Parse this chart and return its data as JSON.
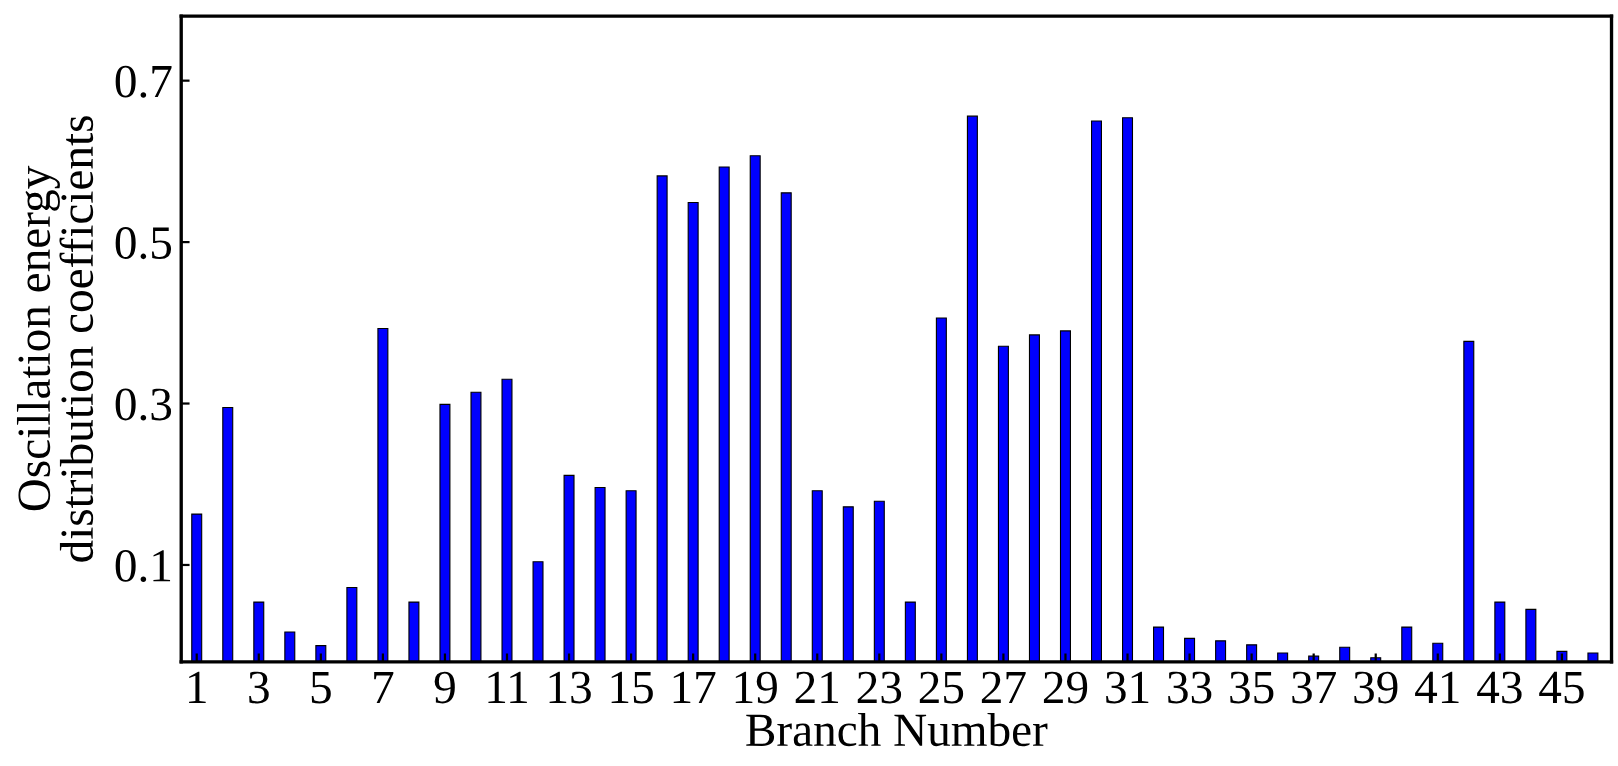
{
  "chart_data": {
    "type": "bar",
    "xlabel": "Branch Number",
    "ylabel": "Oscillation energy\ndistribution coefficients",
    "x": [
      1,
      2,
      3,
      4,
      5,
      6,
      7,
      8,
      9,
      10,
      11,
      12,
      13,
      14,
      15,
      16,
      17,
      18,
      19,
      20,
      21,
      22,
      23,
      24,
      25,
      26,
      27,
      28,
      29,
      30,
      31,
      32,
      33,
      34,
      35,
      36,
      37,
      38,
      39,
      40,
      41,
      42,
      43,
      44,
      45,
      46
    ],
    "values": [
      0.183,
      0.315,
      0.074,
      0.037,
      0.02,
      0.092,
      0.413,
      0.074,
      0.319,
      0.334,
      0.35,
      0.124,
      0.231,
      0.216,
      0.212,
      0.602,
      0.569,
      0.613,
      0.627,
      0.581,
      0.212,
      0.192,
      0.199,
      0.074,
      0.426,
      0.676,
      0.391,
      0.405,
      0.41,
      0.67,
      0.674,
      0.043,
      0.029,
      0.026,
      0.021,
      0.011,
      0.007,
      0.018,
      0.005,
      0.043,
      0.023,
      0.397,
      0.074,
      0.065,
      0.013,
      0.011
    ],
    "base": [
      -0.02,
      -0.02,
      -0.02,
      -0.02,
      -0.02,
      -0.02,
      -0.02,
      -0.02,
      -0.02,
      -0.02,
      -0.02,
      -0.02,
      -0.02,
      -0.02,
      -0.02,
      -0.02,
      -0.02,
      -0.02,
      -0.02,
      -0.02,
      -0.02,
      -0.02,
      -0.02,
      -0.02,
      -0.02,
      -0.02,
      -0.02,
      -0.02,
      -0.02,
      -0.02,
      -0.02,
      -0.02,
      -0.02,
      -0.02,
      -0.02,
      -0.02,
      -0.02,
      -0.02,
      -0.02,
      -0.02,
      -0.02,
      -0.02,
      -0.02,
      -0.02,
      -0.02,
      -0.02
    ],
    "color": "#0000ff",
    "xlim": [
      0.5,
      46.6
    ],
    "xticks": [
      1,
      3,
      5,
      7,
      9,
      11,
      13,
      15,
      17,
      19,
      21,
      23,
      25,
      27,
      29,
      31,
      33,
      35,
      37,
      39,
      41,
      43,
      45
    ],
    "ylim": [
      -0.02,
      0.78
    ],
    "yticks": [
      0.1,
      0.3,
      0.5,
      0.7
    ],
    "grid": false,
    "legend": false
  }
}
